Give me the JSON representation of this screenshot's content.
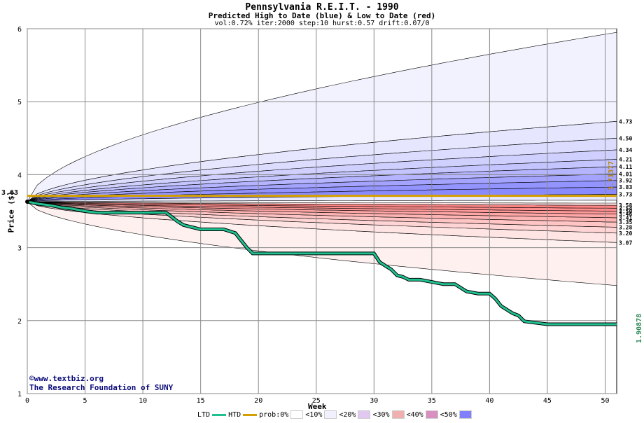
{
  "chart_data": {
    "type": "area",
    "title": "Pennsylvania R.E.I.T. - 1990",
    "subtitle": "Predicted High to Date (blue) &  Low to Date (red)",
    "params": "vol:0.72% iter:2000 step:10 hurst:0.57 drift:0.07/0",
    "xlabel": "Week",
    "ylabel": "Price ($)",
    "xlim": [
      0,
      51
    ],
    "ylim": [
      1,
      6
    ],
    "x_ticks": [
      0,
      5,
      10,
      15,
      20,
      25,
      30,
      35,
      40,
      45,
      50
    ],
    "y_ticks": [
      1,
      2,
      3,
      4,
      5,
      6
    ],
    "grid": true,
    "current_price_label": "3.63",
    "start_price": 3.63,
    "high_to_date_value": 3.71377,
    "high_to_date_label": "3.71377",
    "low_to_date_value": 1.90878,
    "low_to_date_label": "1.90878",
    "upper_band_labels": [
      "4.73",
      "4.50",
      "4.34",
      "4.21",
      "4.11",
      "4.01",
      "3.92",
      "3.83",
      "3.73"
    ],
    "upper_band_values": [
      4.73,
      4.5,
      4.34,
      4.21,
      4.11,
      4.01,
      3.92,
      3.83,
      3.73
    ],
    "upper_outer_end": 5.95,
    "lower_band_labels": [
      "3.58",
      "3.54",
      "3.50",
      "3.46",
      "3.41",
      "3.35",
      "3.28",
      "3.20",
      "3.07"
    ],
    "lower_band_values": [
      3.58,
      3.54,
      3.5,
      3.46,
      3.41,
      3.35,
      3.28,
      3.2,
      3.07
    ],
    "lower_outer_end": 2.48,
    "series": [
      {
        "name": "LTD",
        "x": [
          0,
          1,
          2,
          3,
          4,
          5,
          6,
          8,
          10,
          12,
          12.5,
          13,
          13.5,
          15,
          17,
          18,
          18.5,
          19,
          19.5,
          22,
          25,
          27,
          30,
          30.5,
          31,
          31.5,
          32,
          32.5,
          33,
          34,
          35,
          36,
          37,
          37.5,
          38,
          39,
          40,
          40.5,
          41,
          42,
          42.5,
          43,
          45,
          48,
          51
        ],
        "y": [
          3.63,
          3.6,
          3.58,
          3.55,
          3.53,
          3.5,
          3.48,
          3.48,
          3.48,
          3.48,
          3.42,
          3.36,
          3.31,
          3.25,
          3.25,
          3.2,
          3.1,
          3.0,
          2.92,
          2.92,
          2.92,
          2.92,
          2.92,
          2.8,
          2.75,
          2.7,
          2.62,
          2.6,
          2.56,
          2.56,
          2.53,
          2.5,
          2.5,
          2.45,
          2.4,
          2.37,
          2.37,
          2.3,
          2.2,
          2.1,
          2.07,
          1.99,
          1.95,
          1.95,
          1.95
        ]
      },
      {
        "name": "HTD",
        "x": [
          0,
          51
        ],
        "y": [
          3.71,
          3.71
        ]
      }
    ],
    "legend": [
      "LTD",
      "HTD",
      "prob:0%",
      "<10%",
      "<20%",
      "<30%",
      "<40%",
      "<50%"
    ],
    "legend_colors": [
      "#20c090",
      "#d4a000",
      "#ffffff",
      "#f2f2ff",
      "#ffe6e6",
      "#ffc8c8",
      "#ff9999",
      "#7777ff"
    ]
  },
  "credit": {
    "line1": "©www.textbiz.org",
    "line2": "The Research Foundation of SUNY"
  },
  "colors": {
    "ltd": "#20c090",
    "htd": "#d4a000",
    "grid": "#888888",
    "blue_band": "#7777ff",
    "red_band": "#ff8080"
  }
}
